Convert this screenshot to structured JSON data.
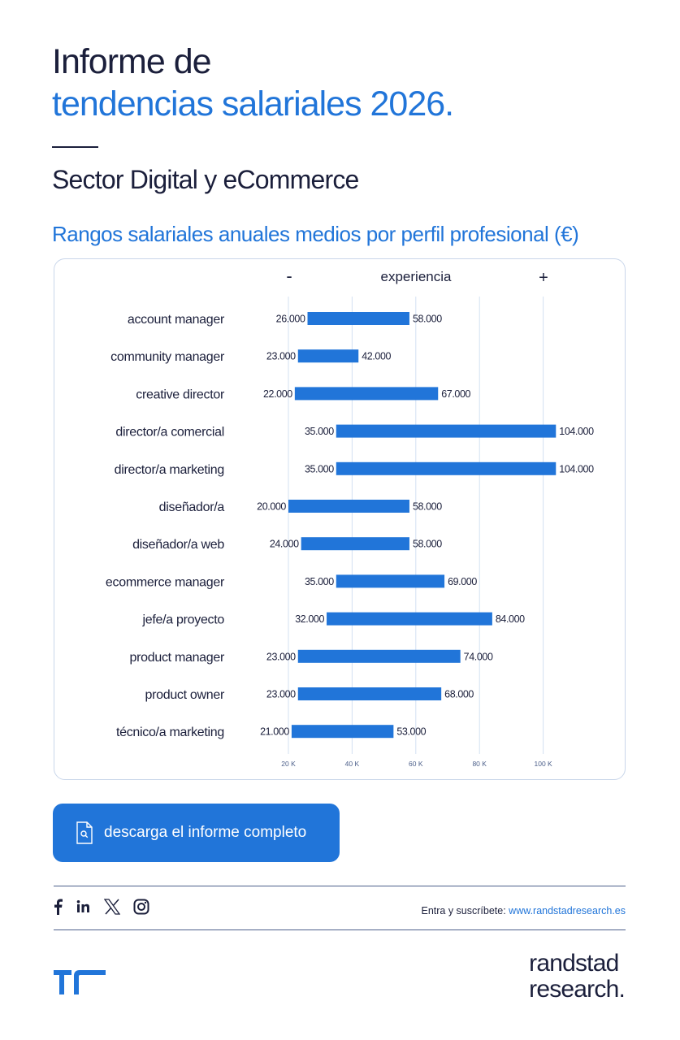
{
  "header": {
    "title_line1": "Informe de",
    "title_line2": "tendencias salariales 2026.",
    "sector": "Sector Digital y eCommerce",
    "subtitle": "Rangos salariales anuales medios por perfil profesional (€)"
  },
  "chart_data": {
    "type": "bar",
    "subtype": "floating-range-horizontal",
    "title": "Rangos salariales anuales medios por perfil profesional (€)",
    "axis_header": {
      "left": "-",
      "center": "experiencia",
      "right": "+"
    },
    "categories": [
      "account manager",
      "community manager",
      "creative director",
      "director/a comercial",
      "director/a marketing",
      "diseñador/a",
      "diseñador/a web",
      "ecommerce manager",
      "jefe/a proyecto",
      "product manager",
      "product owner",
      "técnico/a marketing"
    ],
    "series": [
      {
        "name": "min",
        "values": [
          26000,
          23000,
          22000,
          35000,
          35000,
          20000,
          24000,
          35000,
          32000,
          23000,
          23000,
          21000
        ],
        "labels": [
          "26.000",
          "23.000",
          "22.000",
          "35.000",
          "35.000",
          "20.000",
          "24.000",
          "35.000",
          "32.000",
          "23.000",
          "23.000",
          "21.000"
        ]
      },
      {
        "name": "max",
        "values": [
          58000,
          42000,
          67000,
          104000,
          104000,
          58000,
          58000,
          69000,
          84000,
          74000,
          68000,
          53000
        ],
        "labels": [
          "58.000",
          "42.000",
          "67.000",
          "104.000",
          "104.000",
          "58.000",
          "58.000",
          "69.000",
          "84.000",
          "74.000",
          "68.000",
          "53.000"
        ]
      }
    ],
    "xticks": [
      20000,
      40000,
      60000,
      80000,
      100000
    ],
    "xtick_labels": [
      "20 K",
      "40 K",
      "60 K",
      "80 K",
      "100 K"
    ],
    "xlim": [
      20000,
      104000
    ],
    "grid": true,
    "bar_color": "#2175d9"
  },
  "button": {
    "label": "descarga el informe completo",
    "icon": "document-search-icon"
  },
  "footer": {
    "social": [
      "facebook-icon",
      "linkedin-icon",
      "x-icon",
      "instagram-icon"
    ],
    "subscribe_text": "Entra y suscríbete: ",
    "subscribe_link": "www.randstadresearch.es",
    "brand_line1": "randstad",
    "brand_line2": "research."
  }
}
